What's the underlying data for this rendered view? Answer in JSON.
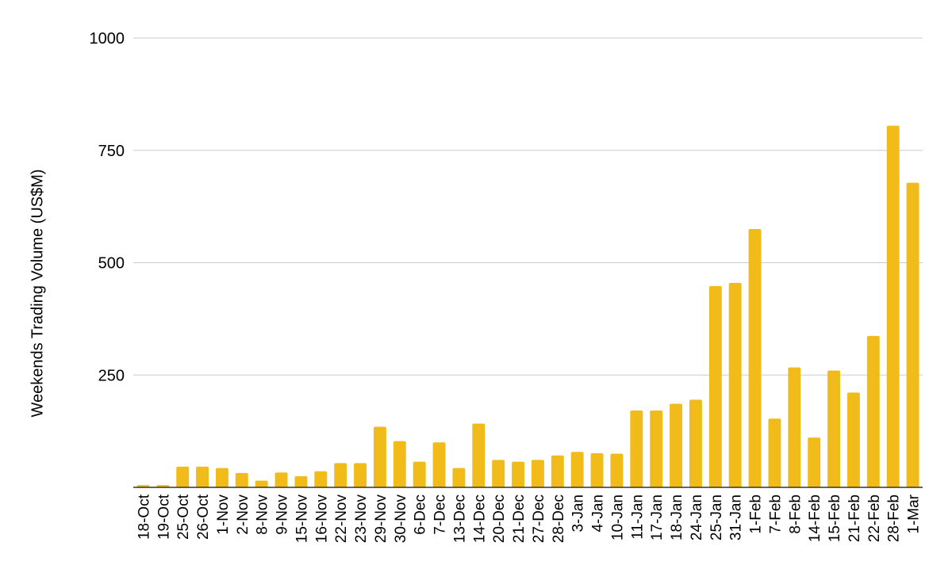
{
  "colors": {
    "bar": "#F1BC19",
    "grid": "#CCCCCC",
    "axis": "#333333",
    "text": "#000000"
  },
  "chart_data": {
    "type": "bar",
    "title": "",
    "xlabel": "",
    "ylabel": "Weekends Trading Volume (US$M)",
    "ylim": [
      0,
      1000
    ],
    "yticks": [
      250,
      500,
      750,
      1000
    ],
    "grid": true,
    "legend": "none",
    "categories": [
      "18-Oct",
      "19-Oct",
      "25-Oct",
      "26-Oct",
      "1-Nov",
      "2-Nov",
      "8-Nov",
      "9-Nov",
      "15-Nov",
      "16-Nov",
      "22-Nov",
      "23-Nov",
      "29-Nov",
      "30-Nov",
      "6-Dec",
      "7-Dec",
      "13-Dec",
      "14-Dec",
      "20-Dec",
      "21-Dec",
      "27-Dec",
      "28-Dec",
      "3-Jan",
      "4-Jan",
      "10-Jan",
      "11-Jan",
      "17-Jan",
      "18-Jan",
      "24-Jan",
      "25-Jan",
      "31-Jan",
      "1-Feb",
      "7-Feb",
      "8-Feb",
      "14-Feb",
      "15-Feb",
      "21-Feb",
      "22-Feb",
      "28-Feb",
      "1-Mar"
    ],
    "values": [
      5,
      5,
      46,
      46,
      43,
      32,
      15,
      33,
      25,
      36,
      54,
      54,
      135,
      103,
      57,
      100,
      43,
      142,
      61,
      57,
      61,
      71,
      79,
      76,
      75,
      171,
      171,
      186,
      195,
      448,
      455,
      575,
      153,
      267,
      111,
      260,
      211,
      337,
      805,
      678
    ]
  }
}
